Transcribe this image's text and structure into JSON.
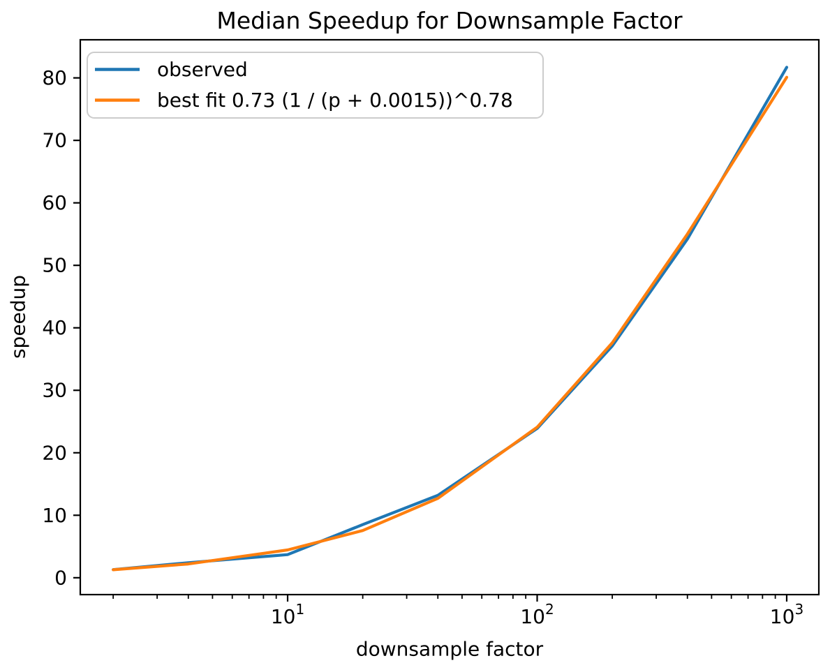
{
  "chart_data": {
    "type": "line",
    "title": "Median Speedup for Downsample Factor",
    "xlabel": "downsample factor",
    "ylabel": "speedup",
    "xscale": "log",
    "grid": false,
    "legend_position": "upper left",
    "xlim": [
      1.476,
      1345
    ],
    "ylim": [
      -2.7,
      86.1
    ],
    "yticks": [
      0,
      10,
      20,
      30,
      40,
      50,
      60,
      70,
      80
    ],
    "xticks_major": [
      10,
      100,
      1000
    ],
    "xtick_label_base": "10",
    "x": [
      2,
      4,
      10,
      20,
      40,
      100,
      200,
      400,
      1000
    ],
    "series": [
      {
        "name": "observed",
        "color": "#1f77b4",
        "values": [
          1.3,
          2.4,
          3.7,
          8.5,
          13.2,
          23.9,
          37.1,
          54.2,
          81.7
        ]
      },
      {
        "name": "best fit 0.73 (1 / (p + 0.0015))^0.78",
        "color": "#ff7f0e",
        "values": [
          1.28,
          2.2,
          4.45,
          7.55,
          12.7,
          24.1,
          37.6,
          55.0,
          80.1
        ]
      }
    ]
  }
}
